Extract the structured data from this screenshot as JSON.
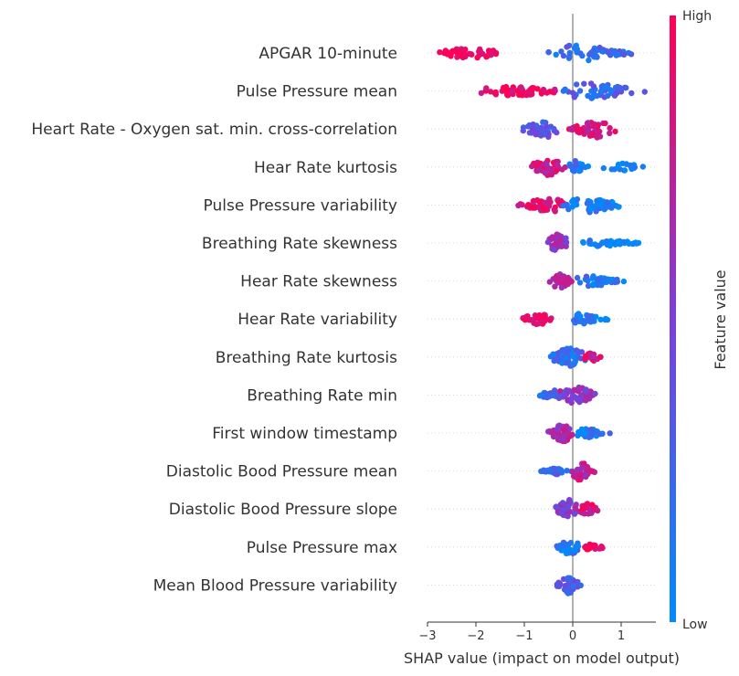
{
  "chart_data": {
    "type": "scatter",
    "subtype": "shap-beeswarm",
    "xlabel": "SHAP value (impact on model output)",
    "x_ticks": [
      -3,
      -2,
      -1,
      0,
      1
    ],
    "x_tick_labels": [
      "−3",
      "−2",
      "−1",
      "0",
      "1"
    ],
    "xlim": [
      -3.0,
      1.7
    ],
    "colorbar": {
      "title": "Feature value",
      "high_label": "High",
      "low_label": "Low",
      "high_color": "#ff0052",
      "low_color": "#008bfb"
    },
    "features": [
      {
        "name": "APGAR 10-minute",
        "groups": [
          {
            "min": -2.85,
            "max": -1.3,
            "center": -2.1,
            "color": 1.0,
            "n": 45,
            "spread": 0.6
          },
          {
            "min": -0.6,
            "max": 1.35,
            "center": 0.1,
            "color": 0.2,
            "n": 55,
            "spread": 0.9
          }
        ]
      },
      {
        "name": "Pulse Pressure mean",
        "groups": [
          {
            "min": -2.05,
            "max": -0.1,
            "center": -1.2,
            "color": 0.95,
            "n": 60,
            "spread": 0.55
          },
          {
            "min": -0.4,
            "max": 1.5,
            "center": 0.35,
            "color": 0.25,
            "n": 50,
            "spread": 0.9
          }
        ]
      },
      {
        "name": "Heart Rate - Oxygen sat. min. cross-correlation",
        "groups": [
          {
            "min": -1.15,
            "max": -0.2,
            "center": -0.55,
            "color": 0.35,
            "n": 45,
            "spread": 0.9
          },
          {
            "min": -0.1,
            "max": 0.9,
            "center": 0.5,
            "color": 0.85,
            "n": 50,
            "spread": 0.9
          }
        ]
      },
      {
        "name": "Hear Rate kurtosis",
        "groups": [
          {
            "min": -0.9,
            "max": -0.1,
            "center": -0.5,
            "color": 0.8,
            "n": 55,
            "spread": 0.9
          },
          {
            "min": -0.1,
            "max": 0.35,
            "center": 0.05,
            "color": 0.15,
            "n": 20,
            "spread": 0.7
          },
          {
            "min": 0.6,
            "max": 1.5,
            "center": 1.0,
            "color": 0.05,
            "n": 20,
            "spread": 0.4
          }
        ]
      },
      {
        "name": "Pulse Pressure variability",
        "groups": [
          {
            "min": -1.15,
            "max": -0.1,
            "center": -0.5,
            "color": 0.9,
            "n": 45,
            "spread": 0.8
          },
          {
            "min": -0.3,
            "max": 1.1,
            "center": 0.3,
            "color": 0.1,
            "n": 50,
            "spread": 0.8
          }
        ]
      },
      {
        "name": "Breathing Rate skewness",
        "groups": [
          {
            "min": -0.6,
            "max": -0.1,
            "center": -0.3,
            "color": 0.6,
            "n": 40,
            "spread": 1.0
          },
          {
            "min": -0.1,
            "max": 1.5,
            "center": 0.6,
            "color": 0.05,
            "n": 40,
            "spread": 0.35
          }
        ]
      },
      {
        "name": "Hear Rate skewness",
        "groups": [
          {
            "min": -0.5,
            "max": 0.0,
            "center": -0.3,
            "color": 0.75,
            "n": 35,
            "spread": 1.0
          },
          {
            "min": 0.0,
            "max": 1.1,
            "center": 0.4,
            "color": 0.15,
            "n": 40,
            "spread": 0.6
          }
        ]
      },
      {
        "name": "Hear Rate variability",
        "groups": [
          {
            "min": -1.1,
            "max": -0.35,
            "center": -0.7,
            "color": 0.9,
            "n": 30,
            "spread": 0.6
          },
          {
            "min": -0.1,
            "max": 0.75,
            "center": 0.15,
            "color": 0.1,
            "n": 40,
            "spread": 0.6
          }
        ]
      },
      {
        "name": "Breathing Rate kurtosis",
        "groups": [
          {
            "min": -0.55,
            "max": 0.35,
            "center": -0.05,
            "color": 0.2,
            "n": 60,
            "spread": 1.0
          },
          {
            "min": 0.2,
            "max": 0.6,
            "center": 0.4,
            "color": 0.85,
            "n": 15,
            "spread": 0.5
          }
        ]
      },
      {
        "name": "Breathing Rate min",
        "groups": [
          {
            "min": -0.85,
            "max": -0.1,
            "center": -0.35,
            "color": 0.25,
            "n": 30,
            "spread": 0.5
          },
          {
            "min": -0.3,
            "max": 0.55,
            "center": 0.05,
            "color": 0.6,
            "n": 50,
            "spread": 1.0
          }
        ]
      },
      {
        "name": "First window timestamp",
        "groups": [
          {
            "min": -0.55,
            "max": 0.0,
            "center": -0.2,
            "color": 0.7,
            "n": 45,
            "spread": 1.0
          },
          {
            "min": 0.0,
            "max": 0.8,
            "center": 0.3,
            "color": 0.1,
            "n": 30,
            "spread": 0.5
          }
        ]
      },
      {
        "name": "Diastolic Bood Pressure mean",
        "groups": [
          {
            "min": -0.75,
            "max": 0.0,
            "center": -0.15,
            "color": 0.2,
            "n": 35,
            "spread": 0.6
          },
          {
            "min": -0.05,
            "max": 0.5,
            "center": 0.15,
            "color": 0.75,
            "n": 40,
            "spread": 1.0
          }
        ]
      },
      {
        "name": "Diastolic Bood Pressure slope",
        "groups": [
          {
            "min": -0.4,
            "max": 0.15,
            "center": -0.1,
            "color": 0.55,
            "n": 45,
            "spread": 1.0
          },
          {
            "min": 0.1,
            "max": 0.55,
            "center": 0.3,
            "color": 0.85,
            "n": 25,
            "spread": 0.7
          }
        ]
      },
      {
        "name": "Pulse Pressure max",
        "groups": [
          {
            "min": -0.35,
            "max": 0.15,
            "center": -0.05,
            "color": 0.15,
            "n": 30,
            "spread": 0.9
          },
          {
            "min": 0.2,
            "max": 0.75,
            "center": 0.4,
            "color": 0.95,
            "n": 15,
            "spread": 0.4
          }
        ]
      },
      {
        "name": "Mean Blood Pressure variability",
        "groups": [
          {
            "min": -0.35,
            "max": 0.2,
            "center": -0.1,
            "color": 0.3,
            "n": 35,
            "spread": 0.9
          }
        ]
      }
    ]
  }
}
